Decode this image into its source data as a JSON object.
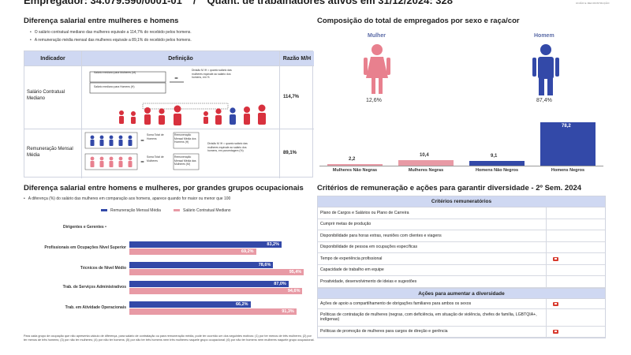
{
  "header": {
    "employer_label": "Empregador: 34.079.590/0001-01",
    "separator": "/",
    "workers_label": "Quant. de trabalhadores ativos em 31/12/2024: 328",
    "logo_text": "UNIÃO E RECONSTRUÇÃO"
  },
  "left_section": {
    "title": "Diferença salarial entre mulheres e homens",
    "bullets": [
      "O salário contratual mediano das mulheres equivale a 114,7% do recebido pelos homens.",
      "A remuneração média mensal das mulheres equivale a 89,1% do recebido pelos homens."
    ],
    "table": {
      "headers": [
        "Indicador",
        "Definição",
        "Razão M/H"
      ],
      "rows": [
        {
          "indicator": "Salário Contratual Mediano",
          "def_a": "Salário mediano para Mulheres (M)",
          "def_b": "Salário mediano para Homens (H)",
          "def_division": "Divisão M /H = quanto salário das mulheres equivale ao salário dos homens, em %",
          "value": "114,7%"
        },
        {
          "indicator": "Remuneração Mensal Média",
          "def_sum_a": "Soma Total de Homens",
          "def_rem_a": "Remuneração Mensal Média dos Homens (H)",
          "def_sum_b": "Soma Total de Mulheres",
          "def_rem_b": "Remuneração Mensal Média das Mulheres (M)",
          "def_division": "Divisão M /H = quanto salário das mulheres equivale ao salário dos homens, em porcentagem (%)",
          "value": "89,1%"
        }
      ]
    }
  },
  "composition": {
    "title": "Composição do total de empregados por sexo e raça/cor",
    "women_label": "Mulher",
    "men_label": "Homem",
    "women_pct": "12,6%",
    "men_pct": "87,4%",
    "colors": {
      "women": "#e8808e",
      "men": "#3349a8",
      "bar_pink": "#e89aa5",
      "bar_blue": "#3349a8"
    }
  },
  "chart_data": [
    {
      "type": "bar",
      "categories": [
        "Mulheres Não Negras",
        "Mulheres Negras",
        "Homens Não Negros",
        "Homens Negros"
      ],
      "values": [
        2.2,
        10.4,
        9.1,
        78.2
      ],
      "value_labels": [
        "2,2",
        "10,4",
        "9,1",
        "78,2"
      ],
      "ylim": [
        0,
        80
      ]
    },
    {
      "type": "bar",
      "title": "Diferença salarial entre homens e mulheres, por grandes grupos ocupacionais",
      "subtitle": "A diferença (%) do salário das mulheres em comparação aos homens, aparece quando for maior ou menor que 100",
      "categories": [
        "Dirigentes e Gerentes",
        "Profissionais em Ocupações Nível Superior",
        "Técnicos de Nível Médio",
        "Trab. de Serviços Administrativos",
        "Trab. em Atividade Operacionais"
      ],
      "series": [
        {
          "name": "Remuneração Mensal Média",
          "values": [
            null,
            83.2,
            78.6,
            87.0,
            66.2
          ],
          "labels": [
            "",
            "83,2%",
            "78,6%",
            "87,0%",
            "66,2%"
          ]
        },
        {
          "name": "Salário Contratual Mediano",
          "values": [
            null,
            69.2,
            95.4,
            94.6,
            91.3
          ],
          "labels": [
            "",
            "69,2%",
            "95,4%",
            "94,6%",
            "91,3%"
          ]
        }
      ],
      "xlim": [
        0,
        100
      ],
      "footnote": "Para cada grupo de ocupação que não apresenta cálculo de diferença, para salário de contratação ou para remuneração média, pode ter ocorrido um dos seguintes motivos: (1) por ter menos de três mulheres; (2) por ter menos de três homens; (3) por não ter mulheres; (4) por não ter homens; (5) por não ter três homens nem três mulheres naquele grupo ocupacional; (6) por não ter homens nem mulheres naquele grupo ocupacional."
    }
  ],
  "criteria": {
    "title": "Critérios de remuneração e ações para garantir diversidade - 2º Sem. 2024",
    "remuneration_header": "Critérios remuneratórios",
    "remuneration_items": [
      {
        "label": "Plano de Cargos e Salários ou Plano de Carreira",
        "flag": false
      },
      {
        "label": "Cumprir metas de produção",
        "flag": false
      },
      {
        "label": "Disponibilidade para horas extras, reuniões com clientes e viagens",
        "flag": false
      },
      {
        "label": "Disponibilidade de pessoa em ocupações específicas",
        "flag": false
      },
      {
        "label": "Tempo de experiência profissional",
        "flag": true
      },
      {
        "label": "Capacidade de trabalho em equipe",
        "flag": false
      },
      {
        "label": "Proatividade, desenvolvimento de ideias e sugestões",
        "flag": false
      }
    ],
    "diversity_header": "Ações para aumentar a diversidade",
    "diversity_items": [
      {
        "label": "Ações de apoio a compartilhamento de obrigações familiares para ambos os sexos",
        "flag": true
      },
      {
        "label": "Políticas de contratação de mulheres (negras, com deficiência, em situação de violência, chefes de família, LGBTQIA+, indígenas)",
        "flag": false
      },
      {
        "label": "Políticas de promoção de mulheres para cargos de direção e gerência",
        "flag": true
      }
    ]
  }
}
